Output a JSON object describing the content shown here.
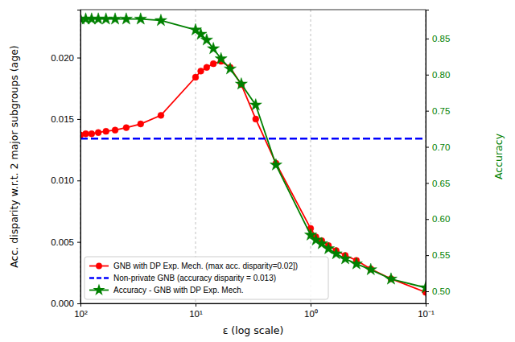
{
  "chart_data": {
    "type": "line",
    "xlabel": "ε (log scale)",
    "ylabel": "Acc. disparity w.r.t. 2 major subgroups (age)",
    "y2label": "Accuracy",
    "log": "x",
    "grid": true,
    "legend": "lower left",
    "x": [
      100,
      90,
      80,
      70,
      60,
      50,
      40,
      30,
      20,
      10,
      9,
      8,
      7,
      6,
      5,
      4,
      3,
      2,
      1,
      0.9,
      0.8,
      0.7,
      0.6,
      0.5,
      0.4,
      0.3,
      0.2,
      0.1
    ],
    "xlim": [
      100,
      0.1
    ],
    "xticks": [
      {
        "value": 100,
        "label": "10²"
      },
      {
        "value": 10,
        "label": "10¹"
      },
      {
        "value": 1,
        "label": "10⁰"
      },
      {
        "value": 0.1,
        "label": "10⁻¹"
      }
    ],
    "ylim": [
      0,
      0.0239
    ],
    "yticks": [
      {
        "value": 0,
        "label": "0.000"
      },
      0.005,
      {
        "value": 0.01,
        "label": "0.010"
      },
      0.015,
      {
        "value": 0.02,
        "label": "0.020"
      }
    ],
    "y2lim": [
      0.4833,
      0.89
    ],
    "y2ticks": [
      {
        "value": 0.5,
        "label": "0.50"
      },
      0.55,
      {
        "value": 0.6,
        "label": "0.60"
      },
      0.65,
      {
        "value": 0.7,
        "label": "0.70"
      },
      0.75,
      {
        "value": 0.8,
        "label": "0.80"
      },
      0.85
    ],
    "series": [
      {
        "name": "GNB with DP Exp. Mech. (max acc. disparity=0.02])",
        "color": "#ff0000",
        "marker": "circle",
        "line_style": "solid",
        "values": [
          0.0137,
          0.0138,
          0.0138,
          0.0139,
          0.014,
          0.0141,
          0.0143,
          0.0146,
          0.0153,
          0.0184,
          0.0189,
          0.0192,
          0.0195,
          0.0197,
          0.0192,
          0.0178,
          0.015,
          0.0114,
          0.0061,
          0.0054,
          0.0051,
          0.0047,
          0.0043,
          0.0039,
          0.0035,
          0.0028,
          0.002,
          0.0009
        ]
      },
      {
        "name": "Non-private GNB (accuracy disparity = 0.013)",
        "color": "#0000ff",
        "marker": "none",
        "line_style": "dashed",
        "values": [
          0.0134,
          0.0134,
          0.0134,
          0.0134,
          0.0134,
          0.0134,
          0.0134,
          0.0134,
          0.0134,
          0.0134,
          0.0134,
          0.0134,
          0.0134,
          0.0134,
          0.0134,
          0.0134,
          0.0134,
          0.0134,
          0.0134,
          0.0134,
          0.0134,
          0.0134,
          0.0134,
          0.0134,
          0.0134,
          0.0134,
          0.0134,
          0.0134
        ]
      },
      {
        "name": "Accuracy - GNB with DP Exp. Mech.",
        "color": "#008000",
        "marker": "star",
        "line_style": "solid",
        "axis": "y2",
        "values": [
          0.877,
          0.877,
          0.877,
          0.877,
          0.877,
          0.877,
          0.877,
          0.877,
          0.875,
          0.862,
          0.856,
          0.848,
          0.836,
          0.822,
          0.808,
          0.787,
          0.758,
          0.675,
          0.578,
          0.571,
          0.566,
          0.559,
          0.552,
          0.545,
          0.538,
          0.53,
          0.517,
          0.505
        ]
      }
    ]
  }
}
